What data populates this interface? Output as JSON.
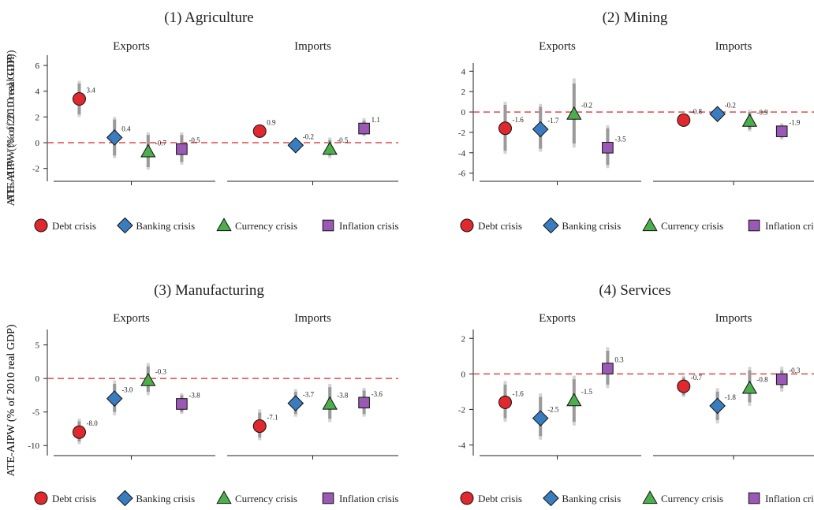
{
  "chart_data": [
    {
      "type": "scatter",
      "title": "(1) Agriculture",
      "ylabel": "ATE-AIPW (% of 2010 real GDP)",
      "ylim": [
        -3,
        6.8
      ],
      "yticks": [
        -2,
        0,
        2,
        4,
        6
      ],
      "panels": [
        {
          "label": "Exports",
          "points": [
            {
              "series": "Debt crisis",
              "value": 3.4,
              "label": "3.4",
              "ci90": [
                2.2,
                4.6
              ],
              "ci95": [
                2.0,
                4.8
              ]
            },
            {
              "series": "Banking crisis",
              "value": 0.4,
              "label": "0.4",
              "ci90": [
                -1.0,
                1.8
              ],
              "ci95": [
                -1.2,
                2.0
              ]
            },
            {
              "series": "Currency crisis",
              "value": -0.7,
              "label": "-0.7",
              "ci90": [
                -1.9,
                0.6
              ],
              "ci95": [
                -2.1,
                0.8
              ]
            },
            {
              "series": "Inflation crisis",
              "value": -0.5,
              "label": "-0.5",
              "ci90": [
                -1.5,
                0.6
              ],
              "ci95": [
                -1.7,
                0.8
              ]
            }
          ]
        },
        {
          "label": "Imports",
          "points": [
            {
              "series": "Debt crisis",
              "value": 0.9,
              "label": "0.9"
            },
            {
              "series": "Banking crisis",
              "value": -0.2,
              "label": "-0.2"
            },
            {
              "series": "Currency crisis",
              "value": -0.5,
              "label": "-0.5",
              "ci90": [
                -1.0,
                0.2
              ],
              "ci95": [
                -1.2,
                0.4
              ]
            },
            {
              "series": "Inflation crisis",
              "value": 1.1,
              "label": "1.1",
              "ci90": [
                0.6,
                1.7
              ],
              "ci95": [
                0.5,
                1.9
              ]
            }
          ]
        }
      ]
    },
    {
      "type": "scatter",
      "title": "(2) Mining",
      "ylabel": "ATE-AIPW (% of 2010 real GDP)",
      "ylim": [
        -6.8,
        4.8
      ],
      "yticks": [
        -6,
        -4,
        -2,
        0,
        2,
        4
      ],
      "panels": [
        {
          "label": "Exports",
          "points": [
            {
              "series": "Debt crisis",
              "value": -1.6,
              "label": "-1.6",
              "ci90": [
                -3.8,
                0.7
              ],
              "ci95": [
                -4.1,
                1.0
              ]
            },
            {
              "series": "Banking crisis",
              "value": -1.7,
              "label": "-1.7",
              "ci90": [
                -3.6,
                0.5
              ],
              "ci95": [
                -3.9,
                0.8
              ]
            },
            {
              "series": "Currency crisis",
              "value": -0.2,
              "label": "-0.2",
              "ci90": [
                -3.1,
                2.8
              ],
              "ci95": [
                -3.5,
                3.3
              ]
            },
            {
              "series": "Inflation crisis",
              "value": -3.5,
              "label": "-3.5",
              "ci90": [
                -5.2,
                -1.6
              ],
              "ci95": [
                -5.5,
                -1.3
              ]
            }
          ]
        },
        {
          "label": "Imports",
          "points": [
            {
              "series": "Debt crisis",
              "value": -0.8,
              "label": "-0.8"
            },
            {
              "series": "Banking crisis",
              "value": -0.2,
              "label": "-0.2"
            },
            {
              "series": "Currency crisis",
              "value": -0.9,
              "label": "-0.9",
              "ci90": [
                -1.7,
                0.0
              ],
              "ci95": [
                -1.9,
                0.2
              ]
            },
            {
              "series": "Inflation crisis",
              "value": -1.9,
              "label": "-1.9",
              "ci90": [
                -2.5,
                -1.3
              ],
              "ci95": [
                -2.7,
                -1.1
              ]
            }
          ]
        }
      ]
    },
    {
      "type": "scatter",
      "title": "(3) Manufacturing",
      "ylabel": "ATE-AIPW (% of 2010 real GDP)",
      "ylim": [
        -11.5,
        7.3
      ],
      "yticks": [
        -10,
        -5,
        0,
        5
      ],
      "panels": [
        {
          "label": "Exports",
          "points": [
            {
              "series": "Debt crisis",
              "value": -8.0,
              "label": "-8.0",
              "ci90": [
                -9.4,
                -6.4
              ],
              "ci95": [
                -9.8,
                -6.0
              ]
            },
            {
              "series": "Banking crisis",
              "value": -3.0,
              "label": "-3.0",
              "ci90": [
                -5.0,
                -0.8
              ],
              "ci95": [
                -5.5,
                -0.3
              ]
            },
            {
              "series": "Currency crisis",
              "value": -0.3,
              "label": "-0.3",
              "ci90": [
                -2.0,
                1.8
              ],
              "ci95": [
                -2.5,
                2.3
              ]
            },
            {
              "series": "Inflation crisis",
              "value": -3.8,
              "label": "-3.8",
              "ci90": [
                -5.0,
                -2.5
              ],
              "ci95": [
                -5.3,
                -2.2
              ]
            }
          ]
        },
        {
          "label": "Imports",
          "points": [
            {
              "series": "Debt crisis",
              "value": -7.1,
              "label": "-7.1",
              "ci90": [
                -8.8,
                -5.1
              ],
              "ci95": [
                -9.2,
                -4.6
              ]
            },
            {
              "series": "Banking crisis",
              "value": -3.7,
              "label": "-3.7",
              "ci90": [
                -5.3,
                -2.0
              ],
              "ci95": [
                -5.7,
                -1.6
              ]
            },
            {
              "series": "Currency crisis",
              "value": -3.8,
              "label": "-3.8",
              "ci90": [
                -6.0,
                -1.3
              ],
              "ci95": [
                -6.5,
                -0.8
              ]
            },
            {
              "series": "Inflation crisis",
              "value": -3.6,
              "label": "-3.6",
              "ci90": [
                -5.3,
                -1.8
              ],
              "ci95": [
                -5.7,
                -1.4
              ]
            }
          ]
        }
      ]
    },
    {
      "type": "scatter",
      "title": "(4) Services",
      "ylabel": "ATE-AIPW (% of 2010 real GDP)",
      "ylim": [
        -4.6,
        2.5
      ],
      "yticks": [
        -4,
        -2,
        0,
        2
      ],
      "panels": [
        {
          "label": "Exports",
          "points": [
            {
              "series": "Debt crisis",
              "value": -1.6,
              "label": "-1.6",
              "ci90": [
                -2.5,
                -0.6
              ],
              "ci95": [
                -2.7,
                -0.4
              ]
            },
            {
              "series": "Banking crisis",
              "value": -2.5,
              "label": "-2.5",
              "ci90": [
                -3.5,
                -1.3
              ],
              "ci95": [
                -3.7,
                -1.1
              ]
            },
            {
              "series": "Currency crisis",
              "value": -1.5,
              "label": "-1.5",
              "ci90": [
                -2.7,
                -0.3
              ],
              "ci95": [
                -2.9,
                -0.1
              ]
            },
            {
              "series": "Inflation crisis",
              "value": 0.3,
              "label": "0.3",
              "ci90": [
                -0.6,
                1.3
              ],
              "ci95": [
                -0.8,
                1.5
              ]
            }
          ]
        },
        {
          "label": "Imports",
          "points": [
            {
              "series": "Debt crisis",
              "value": -0.7,
              "label": "-0.7",
              "ci90": [
                -1.2,
                -0.2
              ],
              "ci95": [
                -1.3,
                -0.1
              ]
            },
            {
              "series": "Banking crisis",
              "value": -1.8,
              "label": "-1.8",
              "ci90": [
                -2.6,
                -1.0
              ],
              "ci95": [
                -2.8,
                -0.8
              ]
            },
            {
              "series": "Currency crisis",
              "value": -0.8,
              "label": "-0.8",
              "ci90": [
                -1.6,
                0.2
              ],
              "ci95": [
                -1.8,
                0.4
              ]
            },
            {
              "series": "Inflation crisis",
              "value": -0.3,
              "label": "-0.3",
              "ci90": [
                -0.8,
                0.2
              ],
              "ci95": [
                -1.0,
                0.4
              ]
            }
          ]
        }
      ]
    }
  ],
  "legend": {
    "placement": "bottom",
    "items": [
      {
        "label": "Debt crisis",
        "marker": "circle",
        "color": "#e0282f"
      },
      {
        "label": "Banking crisis",
        "marker": "diamond",
        "color": "#3a7dbf"
      },
      {
        "label": "Currency crisis",
        "marker": "triangle",
        "color": "#4cae4c"
      },
      {
        "label": "Inflation crisis",
        "marker": "square",
        "color": "#9b59b6"
      }
    ]
  },
  "style": {
    "zero_line_color": "#e8454a",
    "ci90_color": "#9a9a9a",
    "ci95_color": "#d4d4d4"
  }
}
